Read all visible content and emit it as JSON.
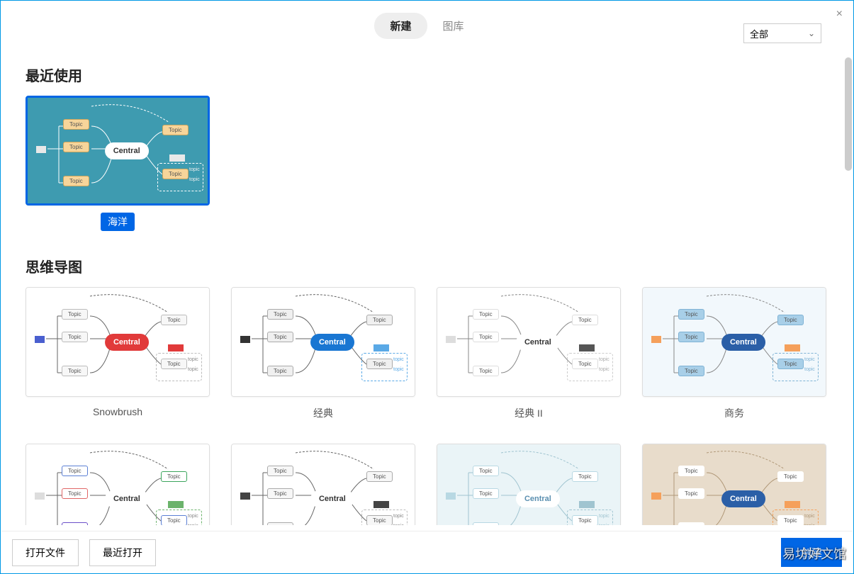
{
  "header": {
    "tabs": {
      "new": "新建",
      "library": "图库"
    },
    "category_dropdown": {
      "selected": "全部"
    },
    "close_glyph": "×"
  },
  "sections": {
    "recent": {
      "title": "最近使用"
    },
    "mindmap": {
      "title": "思维导图"
    }
  },
  "recent_templates": [
    {
      "id": "ocean",
      "label": "海洋",
      "selected": true,
      "bg": "#3e9bb0",
      "central_text": "Central",
      "central_bg": "#ffffff",
      "central_color": "#333333",
      "node_text": "Topic",
      "node_bg": "#f7d59a",
      "node_border": "#c9a55e",
      "subnode_text": "topic",
      "subnode_color": "#eeeeee",
      "line_color": "#ffffff",
      "group_border": "#ffffff",
      "accent_box": "#e8e8e8",
      "side_box": "#e8e8e8"
    }
  ],
  "mindmap_templates": [
    {
      "id": "snowbrush",
      "label": "Snowbrush",
      "bg": "#ffffff",
      "central_text": "Central",
      "central_bg": "#e13a3a",
      "central_color": "#ffffff",
      "node_text": "Topic",
      "node_bg": "#f7f7f7",
      "node_border": "#bbbbbb",
      "subnode_text": "topic",
      "subnode_color": "#888888",
      "line_color": "#666666",
      "group_border": "#bbbbbb",
      "accent_box": "#e13a3a",
      "side_box": "#4a5fcf"
    },
    {
      "id": "classic",
      "label": "经典",
      "bg": "#ffffff",
      "central_text": "Central",
      "central_bg": "#1976d2",
      "central_color": "#ffffff",
      "node_text": "Topic",
      "node_bg": "#f0f0f0",
      "node_border": "#aaaaaa",
      "subnode_text": "topic",
      "subnode_color": "#5aa9e6",
      "line_color": "#666666",
      "group_border": "#5aa9e6",
      "accent_box": "#5aa9e6",
      "side_box": "#333333"
    },
    {
      "id": "classic2",
      "label": "经典 II",
      "bg": "#ffffff",
      "central_text": "Central",
      "central_bg": "#ffffff",
      "central_color": "#333333",
      "node_text": "Topic",
      "node_bg": "#ffffff",
      "node_border": "#dddddd",
      "subnode_text": "topic",
      "subnode_color": "#aaaaaa",
      "line_color_top": "#3ba55c",
      "line_color_right": "#e13a3a",
      "line_color_bottom_l": "#8a6fd4",
      "line_color_bottom_r": "#f5a623",
      "line_color": "#888888",
      "group_border": "#cccccc",
      "accent_box": "#555555",
      "side_box": "#dddddd"
    },
    {
      "id": "business",
      "label": "商务",
      "bg": "#f2f8fc",
      "central_text": "Central",
      "central_bg": "#2b5fa7",
      "central_color": "#ffffff",
      "node_text": "Topic",
      "node_bg": "#a8cfe8",
      "node_border": "#7fb3d5",
      "subnode_text": "topic",
      "subnode_color": "#7fb3d5",
      "line_color": "#888888",
      "group_border": "#7fb3d5",
      "accent_box": "#f5a05b",
      "side_box": "#f5a05b"
    },
    {
      "id": "colorful",
      "label": "",
      "bg": "#ffffff",
      "central_text": "Central",
      "central_bg": "#ffffff",
      "central_color": "#333333",
      "node_text": "Topic",
      "node_bg": "#ffffff",
      "node_border_1": "#5b7fd4",
      "node_border_2": "#e06666",
      "node_border_3": "#6b4fc9",
      "node_border_4": "#3ba55c",
      "subnode_text": "topic",
      "subnode_color": "#888888",
      "line_color": "#666666",
      "group_border": "#6bb36b",
      "accent_box": "#6bb36b",
      "side_box": "#dddddd"
    },
    {
      "id": "wireframe",
      "label": "",
      "bg": "#ffffff",
      "central_text": "Central",
      "central_bg": "#ffffff",
      "central_color": "#333333",
      "node_text": "Topic",
      "node_bg": "#f7f7f7",
      "node_border": "#aaaaaa",
      "subnode_text": "topic",
      "subnode_color": "#888888",
      "line_color": "#666666",
      "group_border": "#bbbbbb",
      "accent_box": "#444444",
      "side_box": "#444444"
    },
    {
      "id": "pastel",
      "label": "",
      "bg": "#eaf4f7",
      "central_text": "Central",
      "central_bg": "#ffffff",
      "central_color": "#5a8fb0",
      "node_text": "Topic",
      "node_bg": "#ffffff",
      "node_border": "#b8d8e3",
      "subnode_text": "topic",
      "subnode_color": "#a0c4d0",
      "line_color": "#a0c4d0",
      "group_border": "#a0c4d0",
      "accent_box": "#a0c4d0",
      "side_box": "#b8d8e3"
    },
    {
      "id": "warm",
      "label": "",
      "bg": "#e8dccb",
      "central_text": "Central",
      "central_bg": "#2b5fa7",
      "central_color": "#ffffff",
      "node_text": "Topic",
      "node_bg": "#ffffff",
      "node_border": "#ffffff",
      "subnode_text": "topic",
      "subnode_color": "#b09878",
      "line_color": "#b09878",
      "group_border": "#f5a05b",
      "accent_box": "#f5a05b",
      "side_box": "#f5a05b"
    }
  ],
  "bottom_bar": {
    "open_file": "打开文件",
    "recent_open": "最近打开",
    "create": "创建"
  },
  "watermark": "易坊好文馆",
  "chevron_down": "⌄"
}
